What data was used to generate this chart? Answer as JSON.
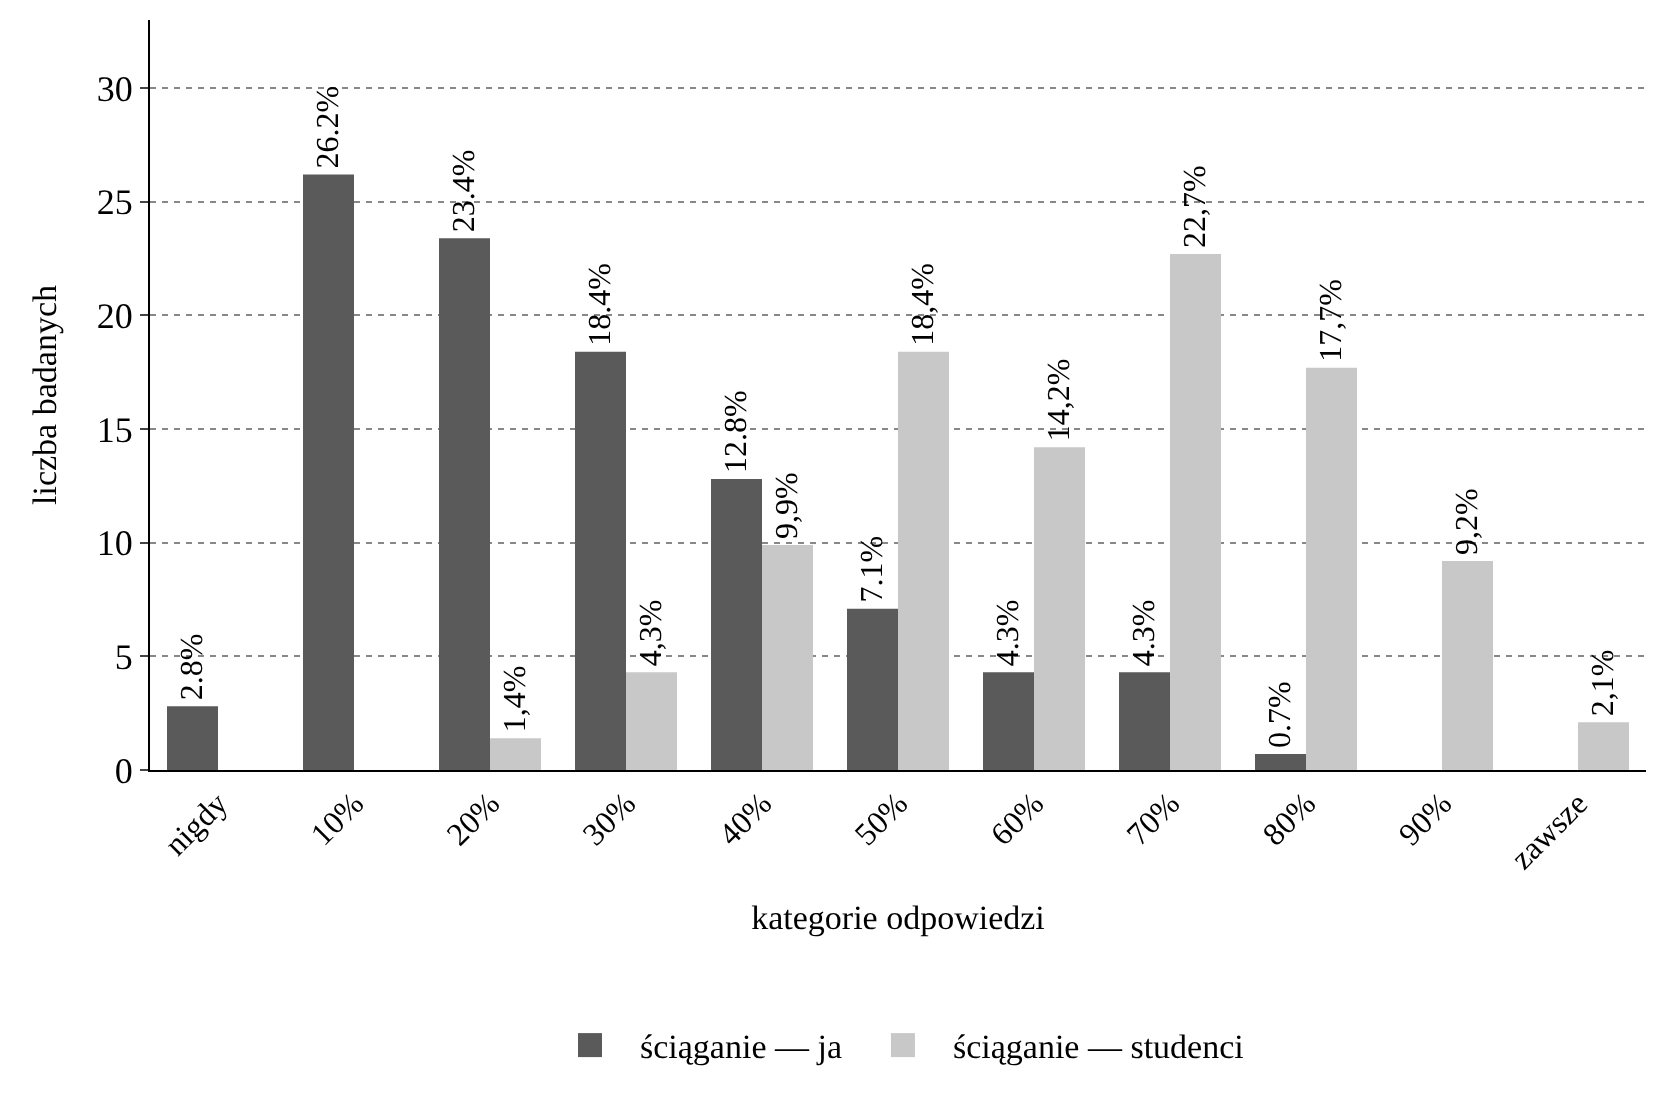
{
  "chart_data": {
    "type": "bar",
    "xlabel": "kategorie odpowiedzi",
    "ylabel": "liczba badanych",
    "categories": [
      "nigdy",
      "10%",
      "20%",
      "30%",
      "40%",
      "50%",
      "60%",
      "70%",
      "80%",
      "90%",
      "zawsze"
    ],
    "series": [
      {
        "name": "ściąganie — ja",
        "color": "#5a5a5a",
        "values": [
          2.8,
          26.2,
          23.4,
          18.4,
          12.8,
          7.1,
          4.3,
          4.3,
          0.7,
          null,
          null
        ],
        "value_labels": [
          "2.8%",
          "26.2%",
          "23.4%",
          "18.4%",
          "12.8%",
          "7.1%",
          "4.3%",
          "4.3%",
          "0.7%",
          null,
          null
        ]
      },
      {
        "name": "ściąganie — studenci",
        "color": "#c8c8c8",
        "values": [
          null,
          null,
          1.4,
          4.3,
          9.9,
          18.4,
          14.2,
          22.7,
          17.7,
          9.2,
          2.1
        ],
        "value_labels": [
          null,
          null,
          "1,4%",
          "4,3%",
          "9,9%",
          "18,4%",
          "14,2%",
          "22,7%",
          "17,7%",
          "9,2%",
          "2,1%"
        ]
      }
    ],
    "ylim": [
      0,
      33
    ],
    "yticks": [
      0,
      5,
      10,
      15,
      20,
      25,
      30
    ],
    "grid": "y",
    "legend": "bottom"
  }
}
